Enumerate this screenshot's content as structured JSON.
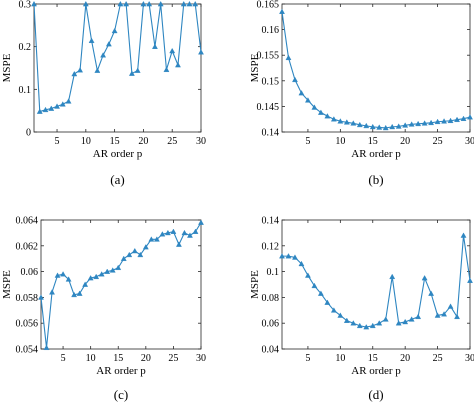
{
  "chart_data": [
    {
      "type": "line",
      "panel_label": "(a)",
      "xlabel": "AR order p",
      "ylabel": "MSPE",
      "xlim": [
        1,
        30
      ],
      "ylim": [
        0,
        0.3
      ],
      "xticks": [
        "5",
        "10",
        "15",
        "20",
        "25",
        "30"
      ],
      "yticks": [
        "0",
        "0.1",
        "0.2",
        "0.3"
      ],
      "grid": false,
      "color": "#2e86c1",
      "series": [
        {
          "x": [
            1,
            2,
            3,
            4,
            5,
            6,
            7,
            8,
            9,
            10,
            11,
            12,
            13,
            14,
            15,
            16,
            17,
            18,
            19,
            20,
            21,
            22,
            23,
            24,
            25,
            26,
            27,
            28,
            29,
            30
          ],
          "values": [
            0.3,
            0.048,
            0.052,
            0.055,
            0.06,
            0.065,
            0.072,
            0.136,
            0.145,
            0.3,
            0.214,
            0.144,
            0.18,
            0.206,
            0.237,
            0.3,
            0.3,
            0.137,
            0.144,
            0.3,
            0.3,
            0.2,
            0.3,
            0.146,
            0.19,
            0.157,
            0.3,
            0.3,
            0.3,
            0.187
          ]
        }
      ]
    },
    {
      "type": "line",
      "panel_label": "(b)",
      "xlabel": "AR order p",
      "ylabel": "MSPE",
      "xlim": [
        1,
        30
      ],
      "ylim": [
        0.14,
        0.165
      ],
      "xticks": [
        "5",
        "10",
        "15",
        "20",
        "25",
        "30"
      ],
      "yticks": [
        "0.14",
        "0.145",
        "0.15",
        "0.155",
        "0.16",
        "0.165"
      ],
      "grid": false,
      "color": "#2e86c1",
      "series": [
        {
          "x": [
            1,
            2,
            3,
            4,
            5,
            6,
            7,
            8,
            9,
            10,
            11,
            12,
            13,
            14,
            15,
            16,
            17,
            18,
            19,
            20,
            21,
            22,
            23,
            24,
            25,
            26,
            27,
            28,
            29,
            30
          ],
          "values": [
            0.1635,
            0.1545,
            0.1502,
            0.1476,
            0.1462,
            0.1448,
            0.1438,
            0.1431,
            0.1425,
            0.1421,
            0.1419,
            0.1417,
            0.1414,
            0.1412,
            0.141,
            0.1409,
            0.1408,
            0.141,
            0.1411,
            0.1413,
            0.1415,
            0.1416,
            0.1417,
            0.1418,
            0.142,
            0.1421,
            0.1422,
            0.1424,
            0.1426,
            0.1429
          ]
        }
      ]
    },
    {
      "type": "line",
      "panel_label": "(c)",
      "xlabel": "AR order p",
      "ylabel": "MSPE",
      "xlim": [
        1,
        30
      ],
      "ylim": [
        0.054,
        0.064
      ],
      "xticks": [
        "5",
        "10",
        "15",
        "20",
        "25",
        "30"
      ],
      "yticks": [
        "0.054",
        "0.056",
        "0.058",
        "0.06",
        "0.062",
        "0.064"
      ],
      "grid": false,
      "color": "#2e86c1",
      "series": [
        {
          "x": [
            1,
            2,
            3,
            4,
            5,
            6,
            7,
            8,
            9,
            10,
            11,
            12,
            13,
            14,
            15,
            16,
            17,
            18,
            19,
            20,
            21,
            22,
            23,
            24,
            25,
            26,
            27,
            28,
            29,
            30
          ],
          "values": [
            0.058,
            0.0541,
            0.0584,
            0.0597,
            0.0598,
            0.0594,
            0.0582,
            0.0583,
            0.059,
            0.0595,
            0.0596,
            0.0598,
            0.06,
            0.0601,
            0.0603,
            0.061,
            0.0613,
            0.0616,
            0.0613,
            0.0619,
            0.0625,
            0.0625,
            0.0629,
            0.063,
            0.0631,
            0.0621,
            0.063,
            0.0628,
            0.0631,
            0.0638
          ]
        }
      ]
    },
    {
      "type": "line",
      "panel_label": "(d)",
      "xlabel": "AR order p",
      "ylabel": "MSPE",
      "xlim": [
        1,
        30
      ],
      "ylim": [
        0.04,
        0.14
      ],
      "xticks": [
        "5",
        "10",
        "15",
        "20",
        "25",
        "30"
      ],
      "yticks": [
        "0.04",
        "0.06",
        "0.08",
        "0.1",
        "0.12",
        "0.14"
      ],
      "grid": false,
      "color": "#2e86c1",
      "series": [
        {
          "x": [
            1,
            2,
            3,
            4,
            5,
            6,
            7,
            8,
            9,
            10,
            11,
            12,
            13,
            14,
            15,
            16,
            17,
            18,
            19,
            20,
            21,
            22,
            23,
            24,
            25,
            26,
            27,
            28,
            29,
            30
          ],
          "values": [
            0.112,
            0.112,
            0.111,
            0.106,
            0.097,
            0.089,
            0.083,
            0.076,
            0.07,
            0.066,
            0.062,
            0.06,
            0.058,
            0.057,
            0.058,
            0.06,
            0.063,
            0.096,
            0.06,
            0.061,
            0.063,
            0.065,
            0.095,
            0.083,
            0.066,
            0.067,
            0.073,
            0.065,
            0.128,
            0.093
          ]
        }
      ]
    }
  ]
}
